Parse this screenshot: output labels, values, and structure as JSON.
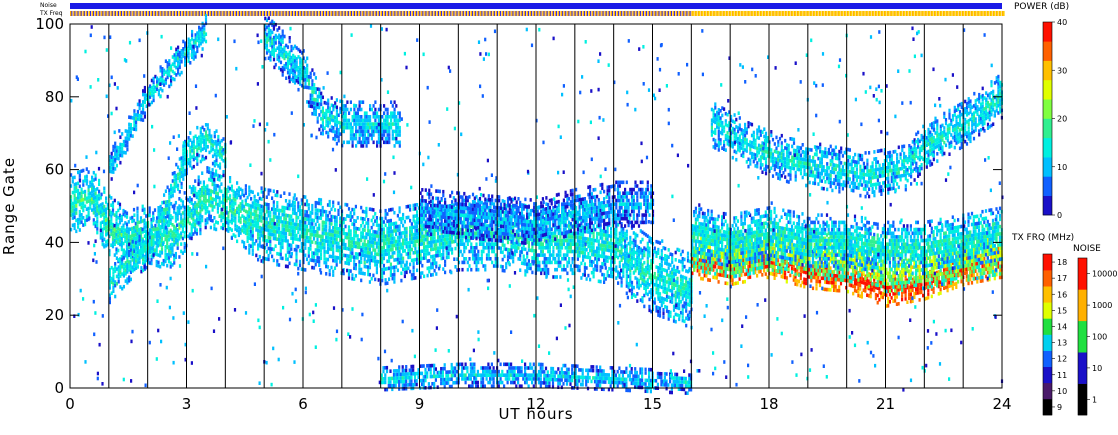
{
  "chart_data": {
    "type": "heatmap",
    "xlabel": "UT hours",
    "ylabel": "Range Gate",
    "xlim": [
      0,
      24
    ],
    "ylim": [
      0,
      100
    ],
    "x_ticks": [
      0,
      3,
      6,
      9,
      12,
      15,
      18,
      21,
      24
    ],
    "y_ticks": [
      0,
      20,
      40,
      60,
      80,
      100
    ],
    "scan_boundary_hours": [
      1,
      2,
      3,
      4,
      5,
      6,
      7,
      8,
      9,
      10,
      11,
      12,
      13,
      14,
      15,
      16,
      17,
      18,
      19,
      20,
      21,
      22,
      23
    ],
    "top_strips": {
      "noise_label": "Noise",
      "txfreq_label": "TX Freq",
      "noise_color": "#1a1ae6",
      "txfreq_segments": [
        {
          "from": 0,
          "to": 16,
          "color": "#ffb000",
          "alt_color": "#2020ff"
        },
        {
          "from": 16,
          "to": 24,
          "color": "#ffb000",
          "alt_color": "#ffe000"
        }
      ]
    },
    "power_colorbar": {
      "title": "POWER (dB)",
      "ticks": [
        0,
        10,
        20,
        30,
        40
      ],
      "range": [
        0,
        40
      ],
      "colors": [
        "#1a10c8",
        "#1060ff",
        "#00c0ff",
        "#00f0e0",
        "#30f090",
        "#80ff40",
        "#e0ff00",
        "#ffc000",
        "#ff6000",
        "#ff1000"
      ]
    },
    "txfrq_colorbar": {
      "title": "TX FRQ (MHz)",
      "ticks": [
        "9",
        "10",
        "11",
        "12",
        "13",
        "14",
        "15",
        "16",
        "17",
        "18"
      ],
      "colors": [
        "#000000",
        "#4a1a6a",
        "#1a10c8",
        "#1060ff",
        "#00d0f0",
        "#20e040",
        "#e0ff00",
        "#ffc000",
        "#ff6000",
        "#ff1000"
      ]
    },
    "noise_colorbar": {
      "title": "NOISE",
      "ticks": [
        "1",
        "10",
        "100",
        "1000",
        "10000"
      ],
      "colors": [
        "#000000",
        "#1a10c8",
        "#20e040",
        "#ffb000",
        "#ff1000"
      ]
    },
    "features": [
      {
        "name": "band-early",
        "points": [
          [
            0,
            50
          ],
          [
            0.5,
            52
          ],
          [
            1,
            44
          ],
          [
            1.5,
            40
          ],
          [
            2,
            42
          ],
          [
            2.5,
            40
          ],
          [
            3,
            46
          ],
          [
            3.5,
            52
          ],
          [
            4,
            50
          ],
          [
            4.5,
            46
          ]
        ],
        "width": 8,
        "power": 12
      },
      {
        "name": "band-main",
        "points": [
          [
            4.5,
            46
          ],
          [
            5,
            44
          ],
          [
            6,
            42
          ],
          [
            7,
            40
          ],
          [
            8,
            38
          ],
          [
            9,
            40
          ],
          [
            10,
            42
          ],
          [
            11,
            42
          ],
          [
            12,
            40
          ],
          [
            13,
            40
          ],
          [
            14,
            38
          ],
          [
            14.5,
            34
          ],
          [
            15,
            30
          ],
          [
            15.5,
            28
          ],
          [
            16,
            26
          ]
        ],
        "width": 10,
        "power": 11
      },
      {
        "name": "band-main-upper",
        "points": [
          [
            9,
            48
          ],
          [
            10,
            47
          ],
          [
            11,
            46
          ],
          [
            12,
            45
          ],
          [
            13,
            48
          ],
          [
            14,
            50
          ],
          [
            15,
            50
          ]
        ],
        "width": 6,
        "power": 6
      },
      {
        "name": "band-evening-strong",
        "points": [
          [
            16,
            34
          ],
          [
            17,
            32
          ],
          [
            18,
            34
          ],
          [
            19,
            31
          ],
          [
            20,
            30
          ],
          [
            21,
            26
          ],
          [
            22,
            28
          ],
          [
            23,
            32
          ],
          [
            24,
            34
          ]
        ],
        "width": 4,
        "power": 34
      },
      {
        "name": "band-evening-mid",
        "points": [
          [
            16,
            38
          ],
          [
            17,
            36
          ],
          [
            18,
            38
          ],
          [
            19,
            36
          ],
          [
            20,
            35
          ],
          [
            21,
            32
          ],
          [
            22,
            33
          ],
          [
            23,
            35
          ],
          [
            24,
            37
          ]
        ],
        "width": 6,
        "power": 20
      },
      {
        "name": "band-evening-low",
        "points": [
          [
            16,
            42
          ],
          [
            17,
            40
          ],
          [
            18,
            42
          ],
          [
            19,
            40
          ],
          [
            20,
            40
          ],
          [
            21,
            38
          ],
          [
            22,
            38
          ],
          [
            23,
            40
          ],
          [
            24,
            42
          ]
        ],
        "width": 7,
        "power": 11
      },
      {
        "name": "arc-early-rising",
        "points": [
          [
            1,
            28
          ],
          [
            1.5,
            34
          ],
          [
            2,
            38
          ],
          [
            2.5,
            50
          ],
          [
            3,
            64
          ],
          [
            3.5,
            68
          ],
          [
            4,
            62
          ]
        ],
        "width": 5,
        "power": 11
      },
      {
        "name": "arc-early-high",
        "points": [
          [
            1,
            60
          ],
          [
            1.5,
            70
          ],
          [
            2,
            80
          ],
          [
            2.5,
            86
          ],
          [
            3,
            92
          ],
          [
            3.5,
            98
          ]
        ],
        "width": 4,
        "power": 9
      },
      {
        "name": "arc-mid-high",
        "points": [
          [
            5,
            96
          ],
          [
            6,
            86
          ],
          [
            6.5,
            74
          ],
          [
            7,
            72
          ],
          [
            8,
            72
          ],
          [
            8.5,
            72
          ]
        ],
        "width": 6,
        "power": 9
      },
      {
        "name": "arc-evening-high",
        "points": [
          [
            16.5,
            72
          ],
          [
            17.5,
            66
          ],
          [
            18.5,
            62
          ],
          [
            19.5,
            60
          ],
          [
            20.5,
            58
          ],
          [
            21.5,
            60
          ],
          [
            22,
            66
          ],
          [
            23,
            72
          ],
          [
            24,
            80
          ]
        ],
        "width": 6,
        "power": 10
      },
      {
        "name": "ground-scatter-low",
        "points": [
          [
            8,
            2
          ],
          [
            10,
            3
          ],
          [
            12,
            3
          ],
          [
            14,
            2
          ],
          [
            16,
            1
          ]
        ],
        "width": 3,
        "power": 8
      }
    ]
  }
}
